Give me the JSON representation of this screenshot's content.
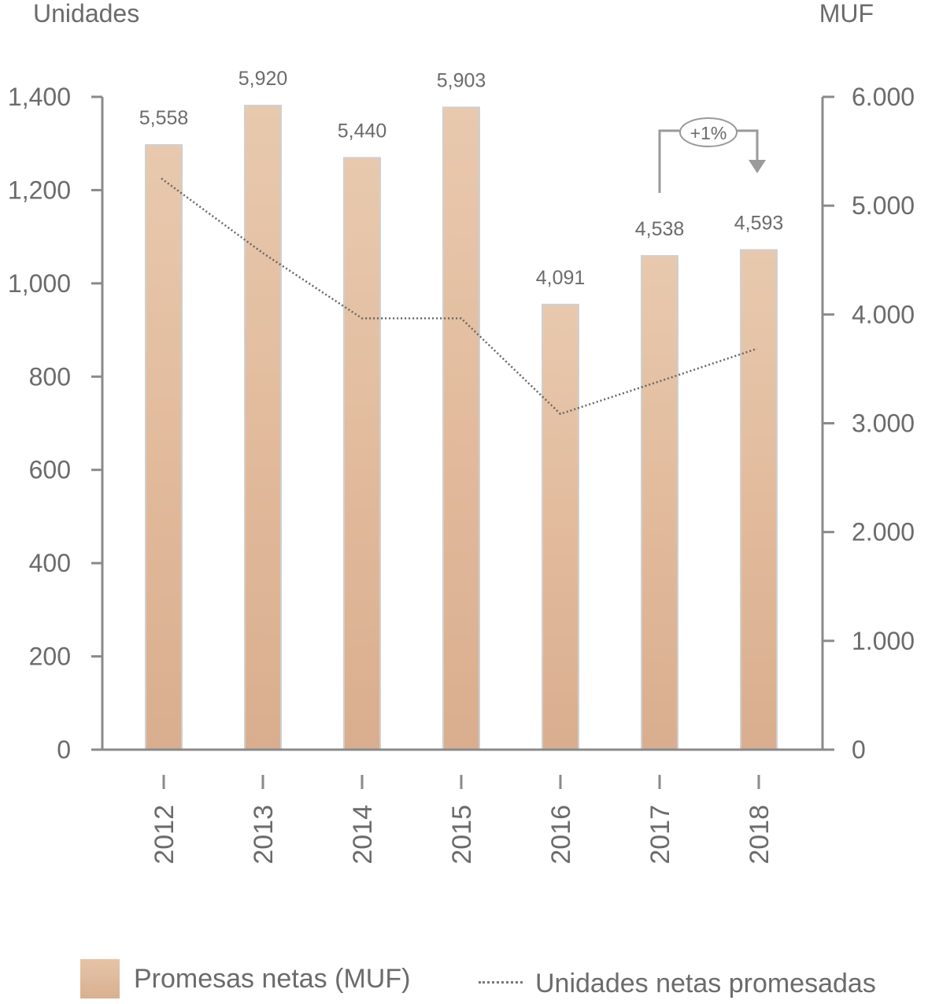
{
  "chart_data": {
    "type": "bar",
    "left_axis_label": "Unidades",
    "right_axis_label": "MUF",
    "categories": [
      "2012",
      "2013",
      "2014",
      "2015",
      "2016",
      "2017",
      "2018"
    ],
    "series": [
      {
        "name": "Promesas netas (MUF)",
        "type": "bar",
        "axis": "right",
        "values": [
          5558,
          5920,
          5440,
          5903,
          4091,
          4538,
          4593
        ],
        "value_labels": [
          "5,558",
          "5,920",
          "5,440",
          "5,903",
          "4,091",
          "4,538",
          "4,593"
        ],
        "color": "#e3bfa1"
      },
      {
        "name": "Unidades netas promesadas",
        "type": "line",
        "style": "dotted",
        "axis": "left",
        "values": [
          1225,
          1065,
          925,
          925,
          720,
          790,
          860
        ],
        "color": "#666666"
      }
    ],
    "left_axis": {
      "ylim": [
        0,
        1400
      ],
      "ticks": [
        "0",
        "200",
        "400",
        "600",
        "800",
        "1,000",
        "1,200",
        "1,400"
      ]
    },
    "right_axis": {
      "ylim": [
        0,
        6000
      ],
      "ticks": [
        "0",
        "1.000",
        "2.000",
        "3.000",
        "4.000",
        "5.000",
        "6.000"
      ]
    },
    "annotation": {
      "text": "+1%",
      "from": "2017",
      "to": "2018"
    },
    "legend_position": "bottom",
    "grid": false
  }
}
